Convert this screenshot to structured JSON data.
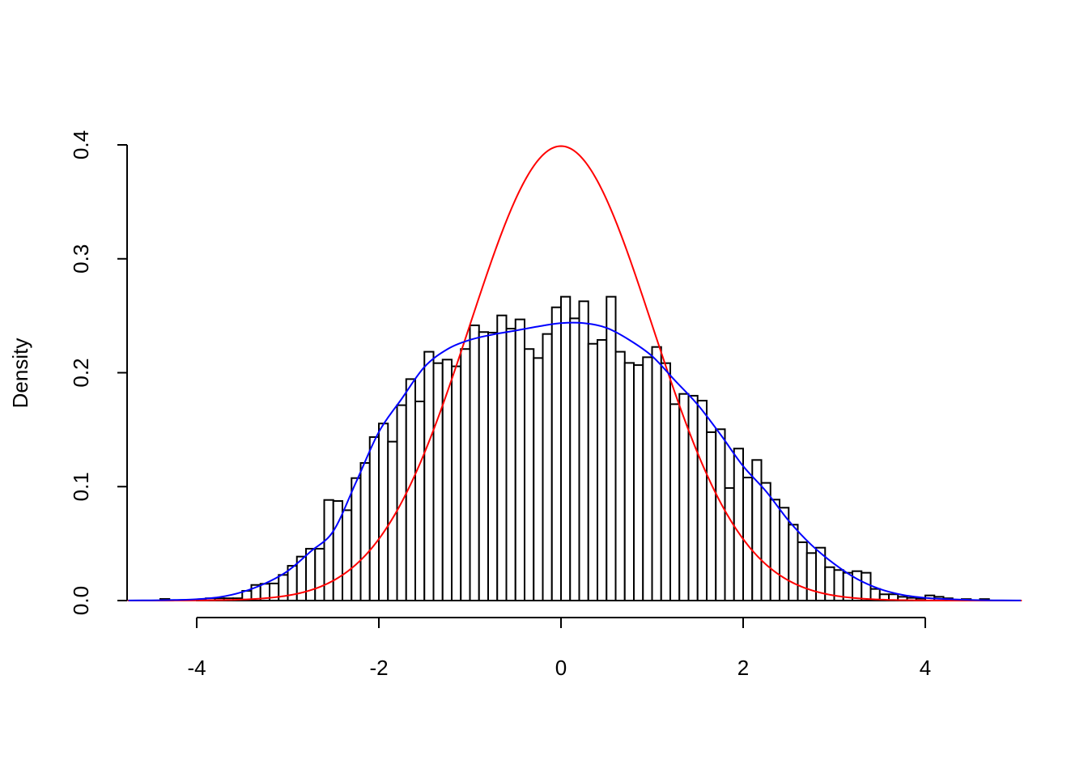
{
  "chart_data": {
    "type": "bar",
    "title": "",
    "xlabel": "",
    "ylabel": "Density",
    "xlim": [
      -4.76,
      5.06
    ],
    "ylim": [
      0,
      0.4
    ],
    "grid": false,
    "x_ticks": [
      -4,
      -2,
      0,
      2,
      4
    ],
    "x_tick_labels": [
      "-4",
      "-2",
      "0",
      "2",
      "4"
    ],
    "y_ticks": [
      0,
      0.1,
      0.2,
      0.3,
      0.4
    ],
    "y_tick_labels": [
      "0.0",
      "0.1",
      "0.2",
      "0.3",
      "0.4"
    ],
    "histogram": {
      "bin_start": -4.4,
      "bin_width": 0.1,
      "fill": "#ffffff",
      "border": "#000000",
      "density": [
        0.0014,
        0,
        0,
        0,
        0.001,
        0.002,
        0.002,
        0.002,
        0.002,
        0.0085,
        0.0137,
        0.0147,
        0.015,
        0.0225,
        0.0305,
        0.0386,
        0.0455,
        0.0455,
        0.0883,
        0.0874,
        0.0793,
        0.1075,
        0.1208,
        0.1435,
        0.1554,
        0.1395,
        0.1715,
        0.1944,
        0.1748,
        0.2184,
        0.2084,
        0.2115,
        0.2056,
        0.2208,
        0.2416,
        0.2357,
        0.2352,
        0.2503,
        0.2387,
        0.2468,
        0.2208,
        0.2129,
        0.234,
        0.2574,
        0.2667,
        0.2477,
        0.2627,
        0.2254,
        0.2288,
        0.2667,
        0.2184,
        0.2086,
        0.2067,
        0.2136,
        0.2226,
        0.2084,
        0.1724,
        0.1814,
        0.1798,
        0.1755,
        0.1478,
        0.1504,
        0.0988,
        0.1334,
        0.108,
        0.1234,
        0.1033,
        0.0886,
        0.0815,
        0.0666,
        0.0512,
        0.0417,
        0.0464,
        0.0293,
        0.0268,
        0.0244,
        0.0258,
        0.0244,
        0.0102,
        0.0055,
        0.0055,
        0.0033,
        0.0024,
        0.0017,
        0.0045,
        0.0033,
        0.002,
        0,
        0.0013,
        0,
        0.0013
      ]
    },
    "series": [
      {
        "type": "line",
        "color": "#ff0000",
        "distribution": "normal",
        "mean": 0,
        "sd": 1
      },
      {
        "type": "line",
        "color": "#0000ff",
        "x": [
          -4.75,
          -4.5,
          -4.25,
          -4,
          -3.75,
          -3.5,
          -3.25,
          -3,
          -2.75,
          -2.5,
          -2.25,
          -2,
          -1.75,
          -1.5,
          -1.25,
          -1,
          -0.75,
          -0.5,
          -0.25,
          0,
          0.25,
          0.5,
          0.75,
          1,
          1.25,
          1.5,
          1.75,
          2,
          2.25,
          2.5,
          2.75,
          3,
          3.25,
          3.5,
          3.75,
          4,
          4.25,
          4.5,
          4.75,
          5,
          5.05
        ],
        "y": [
          0.0001,
          0.0002,
          0.0005,
          0.0012,
          0.003,
          0.0075,
          0.015,
          0.026,
          0.043,
          0.061,
          0.104,
          0.148,
          0.177,
          0.205,
          0.2205,
          0.2288,
          0.2335,
          0.237,
          0.2406,
          0.2435,
          0.2435,
          0.2394,
          0.2288,
          0.2146,
          0.1933,
          0.172,
          0.1459,
          0.118,
          0.096,
          0.0701,
          0.0488,
          0.0322,
          0.019,
          0.0102,
          0.005,
          0.0024,
          0.0012,
          0.0005,
          0.0002,
          0.0001,
          0.0001
        ]
      }
    ]
  }
}
